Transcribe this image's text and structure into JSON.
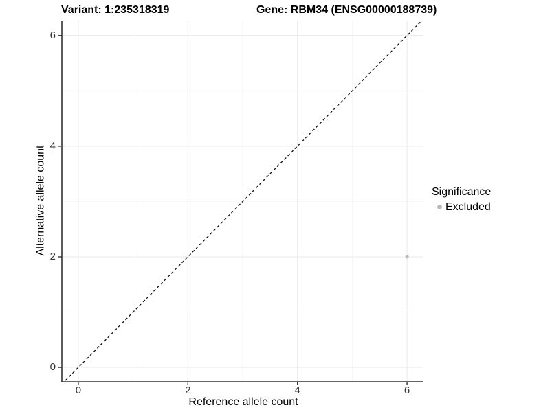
{
  "chart_data": {
    "type": "scatter",
    "titles": {
      "left": "Variant: 1:235318319",
      "right": "Gene: RBM34 (ENSG00000188739)"
    },
    "xlabel": "Reference allele count",
    "ylabel": "Alternative allele count",
    "x_ticks": [
      0,
      2,
      4,
      6
    ],
    "y_ticks": [
      0,
      2,
      4,
      6
    ],
    "x_minor_ticks": [
      1,
      3,
      5
    ],
    "y_minor_ticks": [
      1,
      3,
      5
    ],
    "xlim": [
      -0.3,
      6.3
    ],
    "ylim": [
      -0.26,
      6.27
    ],
    "grid": true,
    "series": [
      {
        "name": "Excluded",
        "color": "#b9b9b9",
        "points": [
          {
            "x": 6,
            "y": 2
          }
        ]
      }
    ],
    "reference_line": {
      "type": "identity",
      "style": "dashed",
      "color": "#111111"
    },
    "legend": {
      "title": "Significance",
      "position": "right",
      "items": [
        {
          "label": "Excluded",
          "color": "#b9b9b9"
        }
      ]
    },
    "colors": {
      "background": "#ffffff",
      "grid_major": "#e9e9e9",
      "grid_minor": "#f5f5f5",
      "axis": "#333333",
      "text": "#000000"
    }
  }
}
